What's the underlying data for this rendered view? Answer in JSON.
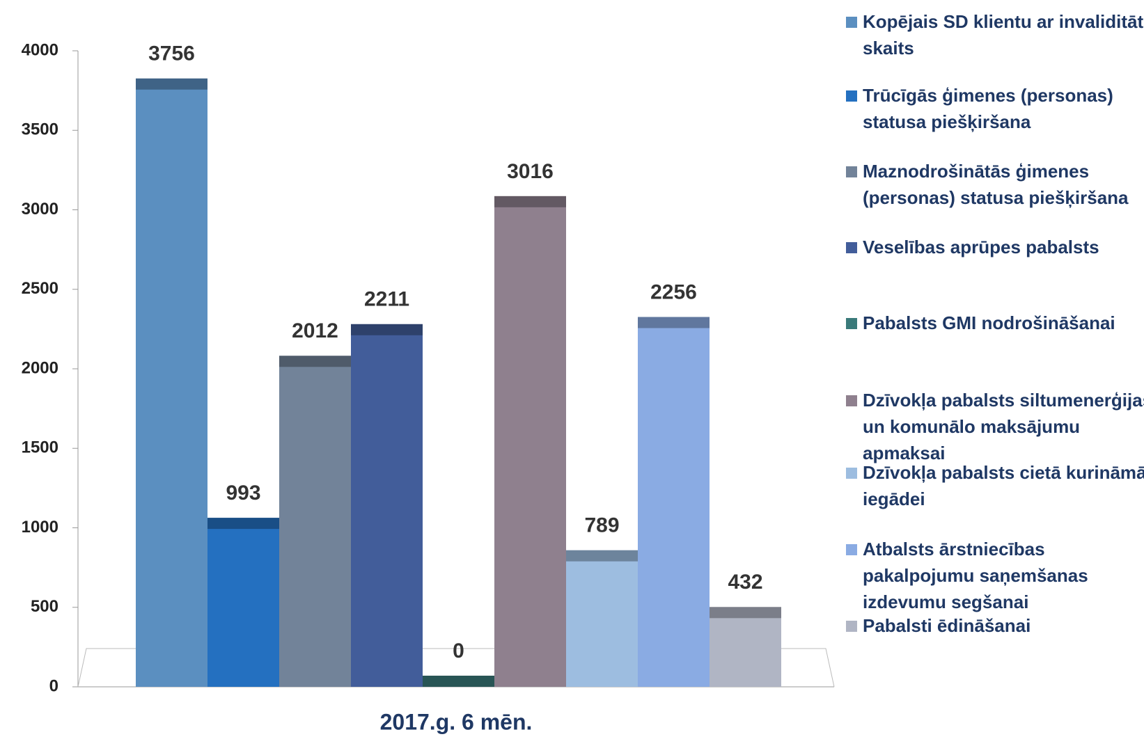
{
  "chart_data": {
    "type": "bar",
    "categories": [
      "2017.g. 6 mēn."
    ],
    "series": [
      {
        "name": "Kopējais SD klientu ar invaliditāti skaits",
        "color": "#5b8fc0",
        "values": [
          3756
        ]
      },
      {
        "name": "Trūcīgās ģimenes (personas) statusa piešķiršana",
        "color": "#2470c0",
        "values": [
          993
        ]
      },
      {
        "name": "Maznodrošinātās ģimenes (personas) statusa piešķiršana",
        "color": "#728399",
        "values": [
          2012
        ]
      },
      {
        "name": "Veselības aprūpes pabalsts",
        "color": "#425d9a",
        "values": [
          2211
        ]
      },
      {
        "name": "Pabalsts GMI nodrošināšanai",
        "color": "#3a7a7a",
        "values": [
          0
        ]
      },
      {
        "name": "Dzīvokļa pabalsts siltumenerģijas un komunālo maksājumu apmaksai",
        "color": "#8f808e",
        "values": [
          3016
        ]
      },
      {
        "name": "Dzīvokļa pabalsts cietā kurināmā iegādei",
        "color": "#9dbde0",
        "values": [
          789
        ]
      },
      {
        "name": "Atbalsts ārstniecības pakalpojumu saņemšanas izdevumu segšanai",
        "color": "#8aabe3",
        "values": [
          2256
        ]
      },
      {
        "name": "Pabalsti ēdināšanai",
        "color": "#b0b5c4",
        "values": [
          432
        ]
      }
    ],
    "ylim": [
      0,
      4000
    ],
    "yticks": [
      0,
      500,
      1000,
      1500,
      2000,
      2500,
      3000,
      3500,
      4000
    ],
    "legend": "right"
  }
}
